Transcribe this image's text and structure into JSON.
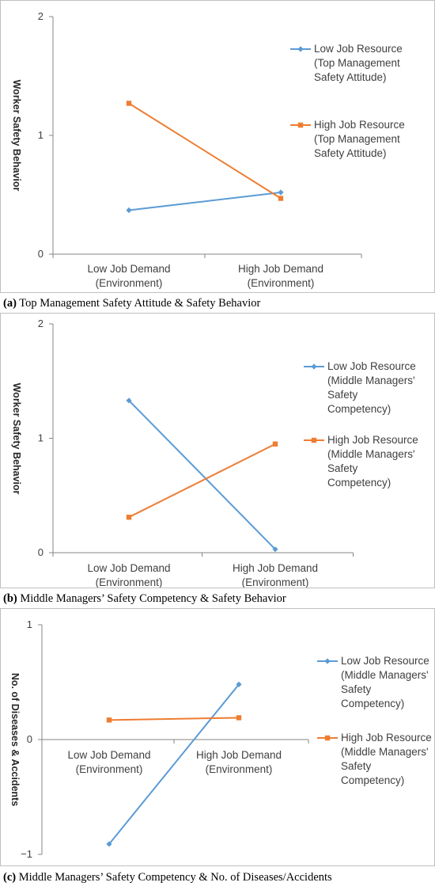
{
  "colors": {
    "low": "#5b9bd5",
    "high": "#ed7d31",
    "axis": "#868686"
  },
  "chart_data": [
    {
      "type": "line",
      "panel_label": "(a)",
      "caption": "Top Management Safety Attitude & Safety Behavior",
      "ylabel": "Worker Safety Behavior",
      "ylim": [
        0,
        2
      ],
      "yticks": [
        "0",
        "1",
        "2"
      ],
      "categories": [
        [
          "Low Job Demand",
          "(Environment)"
        ],
        [
          "High Job Demand",
          "(Environment)"
        ]
      ],
      "series": [
        {
          "name": [
            "Low Job Resource",
            "(Top Management",
            "Safety Attitude)"
          ],
          "values": [
            0.37,
            0.52
          ]
        },
        {
          "name": [
            "High Job Resource",
            "(Top Management",
            "Safety Attitude)"
          ],
          "values": [
            1.27,
            0.47
          ]
        }
      ]
    },
    {
      "type": "line",
      "panel_label": "(b)",
      "caption": "Middle Managers’ Safety Competency & Safety Behavior",
      "ylabel": "Worker Safety Behavior",
      "ylim": [
        0,
        2
      ],
      "yticks": [
        "0",
        "1",
        "2"
      ],
      "categories": [
        [
          "Low Job Demand",
          "(Environment)"
        ],
        [
          "High Job Demand",
          "(Environment)"
        ]
      ],
      "series": [
        {
          "name": [
            "Low Job Resource",
            "(Middle Managers'",
            "Safety",
            "Competency)"
          ],
          "values": [
            1.33,
            0.03
          ]
        },
        {
          "name": [
            "High Job Resource",
            "(Middle Managers'",
            "Safety",
            "Competency)"
          ],
          "values": [
            0.31,
            0.95
          ]
        }
      ]
    },
    {
      "type": "line",
      "panel_label": "(c)",
      "caption": "Middle Managers’ Safety Competency & No. of Diseases/Accidents",
      "ylabel": "No. of Diseases & Accidents",
      "ylim": [
        -1,
        1
      ],
      "yticks": [
        "−1",
        "0",
        "1"
      ],
      "categories": [
        [
          "Low Job Demand",
          "(Environment)"
        ],
        [
          "High Job Demand",
          "(Environment)"
        ]
      ],
      "series": [
        {
          "name": [
            "Low Job Resource",
            "(Middle Managers'",
            "Safety",
            "Competency)"
          ],
          "values": [
            -0.91,
            0.48
          ]
        },
        {
          "name": [
            "High Job Resource",
            "(Middle Managers'",
            "Safety",
            "Competency)"
          ],
          "values": [
            0.17,
            0.19
          ]
        }
      ]
    }
  ]
}
